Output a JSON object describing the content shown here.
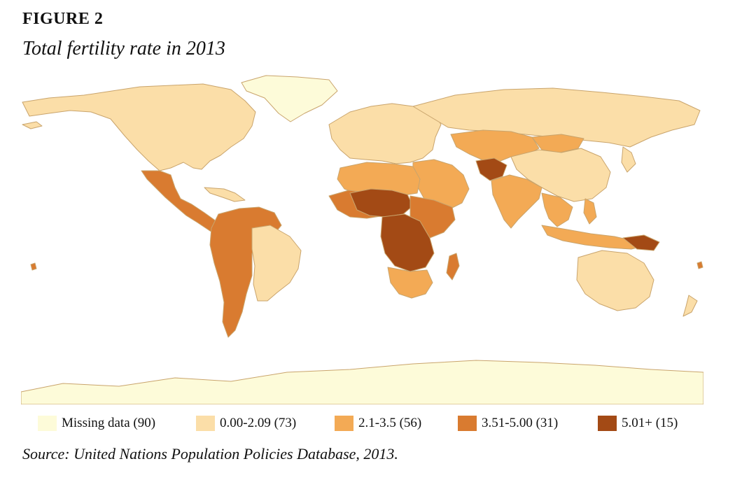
{
  "figure": {
    "label_prefix": "F",
    "label_rest": "IGURE",
    "label_number": "2",
    "title": "Total fertility rate in 2013"
  },
  "legend": {
    "items": [
      {
        "label": "Missing data (90)",
        "color": "#fdfbd9"
      },
      {
        "label": "0.00-2.09 (73)",
        "color": "#fbdea8"
      },
      {
        "label": "2.1-3.5 (56)",
        "color": "#f3aa55"
      },
      {
        "label": "3.51-5.00 (31)",
        "color": "#d97b30"
      },
      {
        "label": "5.01+ (15)",
        "color": "#a34a15"
      }
    ]
  },
  "map": {
    "colors": {
      "missing": "#fdfbd9",
      "low": "#fbdea8",
      "mid": "#f3aa55",
      "high": "#d97b30",
      "veryhigh": "#a34a15",
      "border": "#c9a46c"
    }
  },
  "source": "Source: United Nations Population Policies Database, 2013."
}
